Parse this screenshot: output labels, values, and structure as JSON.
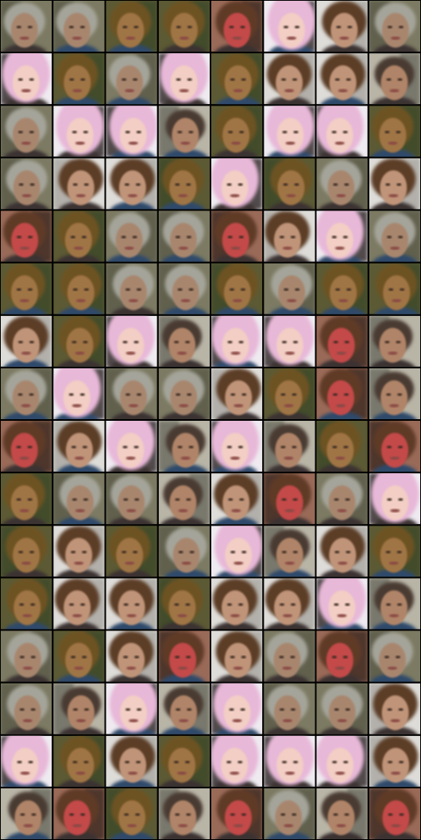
{
  "grid": {
    "rows": 16,
    "columns": 8
  }
}
